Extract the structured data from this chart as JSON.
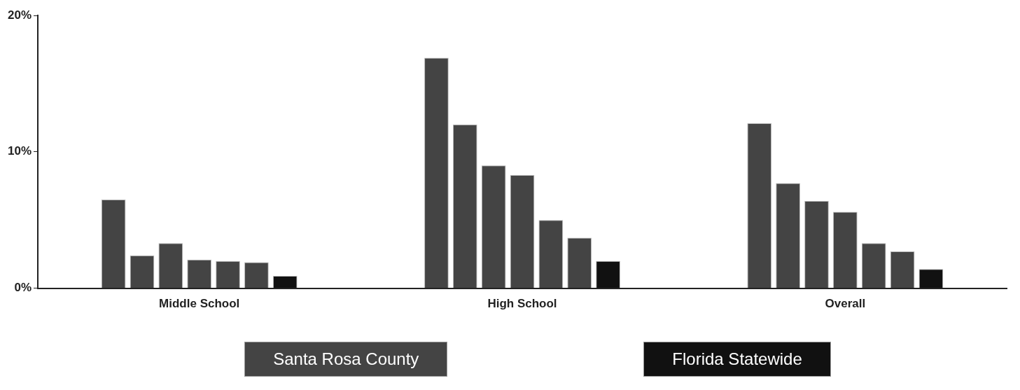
{
  "chart_data": {
    "type": "bar",
    "categories": [
      "Middle School",
      "High School",
      "Overall"
    ],
    "series": [
      {
        "name": "Santa Rosa County",
        "color": "#444444",
        "values": [
          6.5,
          16.9,
          12.1
        ]
      },
      {
        "color": "#444444",
        "values": [
          2.4,
          12.0,
          7.7
        ]
      },
      {
        "color": "#444444",
        "values": [
          3.3,
          9.0,
          6.4
        ]
      },
      {
        "color": "#444444",
        "values": [
          2.1,
          8.3,
          5.6
        ]
      },
      {
        "color": "#444444",
        "values": [
          2.0,
          5.0,
          3.3
        ]
      },
      {
        "color": "#444444",
        "values": [
          1.9,
          3.7,
          2.7
        ]
      },
      {
        "name": "Florida Statewide",
        "color": "#111111",
        "values": [
          0.9,
          2.0,
          1.4
        ]
      }
    ],
    "ylim": [
      0,
      20
    ],
    "yticks": [
      {
        "value": 0,
        "label": "0%"
      },
      {
        "value": 10,
        "label": "10%"
      },
      {
        "value": 20,
        "label": "20%"
      }
    ],
    "grid": false,
    "legend": "bottom"
  }
}
